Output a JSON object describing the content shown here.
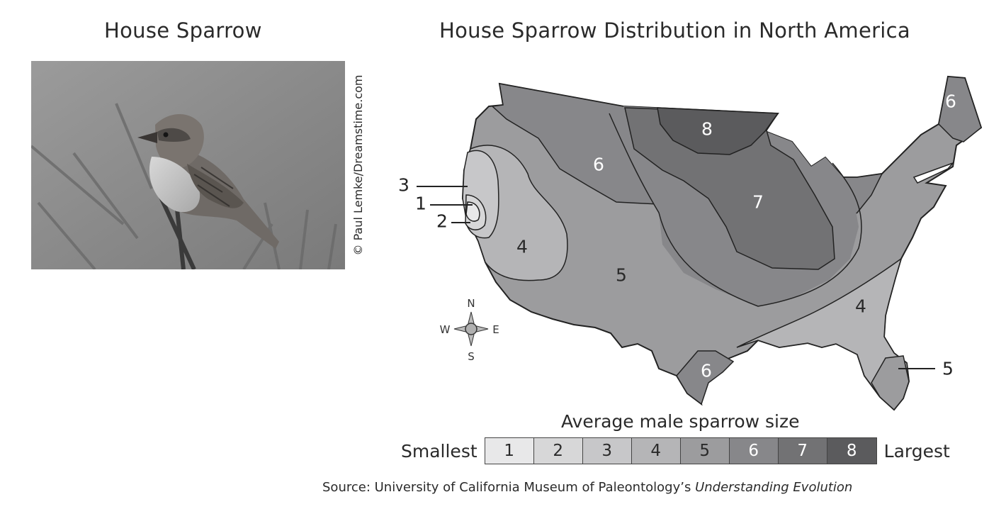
{
  "photo": {
    "title": "House Sparrow",
    "credit": "© Paul Lemke/Dreamstime.com"
  },
  "map": {
    "title": "House Sparrow Distribution in North America",
    "zones": [
      {
        "label": "8",
        "fill": "#5b5b5d",
        "text": "#ffffff"
      },
      {
        "label": "7",
        "fill": "#727274",
        "text": "#ffffff"
      },
      {
        "label": "6",
        "fill": "#87878a",
        "text": "#ffffff"
      },
      {
        "label": "5",
        "fill": "#9c9c9e",
        "text": "#2a2a2a"
      },
      {
        "label": "4",
        "fill": "#b5b5b7",
        "text": "#2a2a2a"
      },
      {
        "label": "3",
        "fill": "#c7c7c9",
        "text": "#2a2a2a"
      },
      {
        "label": "2",
        "fill": "#d7d7d8",
        "text": "#2a2a2a"
      },
      {
        "label": "1",
        "fill": "#e8e8e9",
        "text": "#2a2a2a"
      }
    ],
    "region_labels": [
      "6",
      "6",
      "7",
      "8",
      "4",
      "5",
      "4",
      "6"
    ],
    "callouts": [
      "3",
      "1",
      "2",
      "5"
    ],
    "compass": {
      "n": "N",
      "s": "S",
      "e": "E",
      "w": "W"
    }
  },
  "legend": {
    "title": "Average male sparrow size",
    "low_label": "Smallest",
    "high_label": "Largest",
    "values": [
      "1",
      "2",
      "3",
      "4",
      "5",
      "6",
      "7",
      "8"
    ],
    "colors": [
      "#e8e8e9",
      "#d7d7d8",
      "#c7c7c9",
      "#b5b5b7",
      "#9c9c9e",
      "#87878a",
      "#727274",
      "#5b5b5d"
    ],
    "text_colors": [
      "#2a2a2a",
      "#2a2a2a",
      "#2a2a2a",
      "#2a2a2a",
      "#2a2a2a",
      "#ffffff",
      "#ffffff",
      "#ffffff"
    ]
  },
  "source": {
    "prefix": "Source: University of California Museum of Paleontology’s ",
    "title": "Understanding Evolution"
  }
}
